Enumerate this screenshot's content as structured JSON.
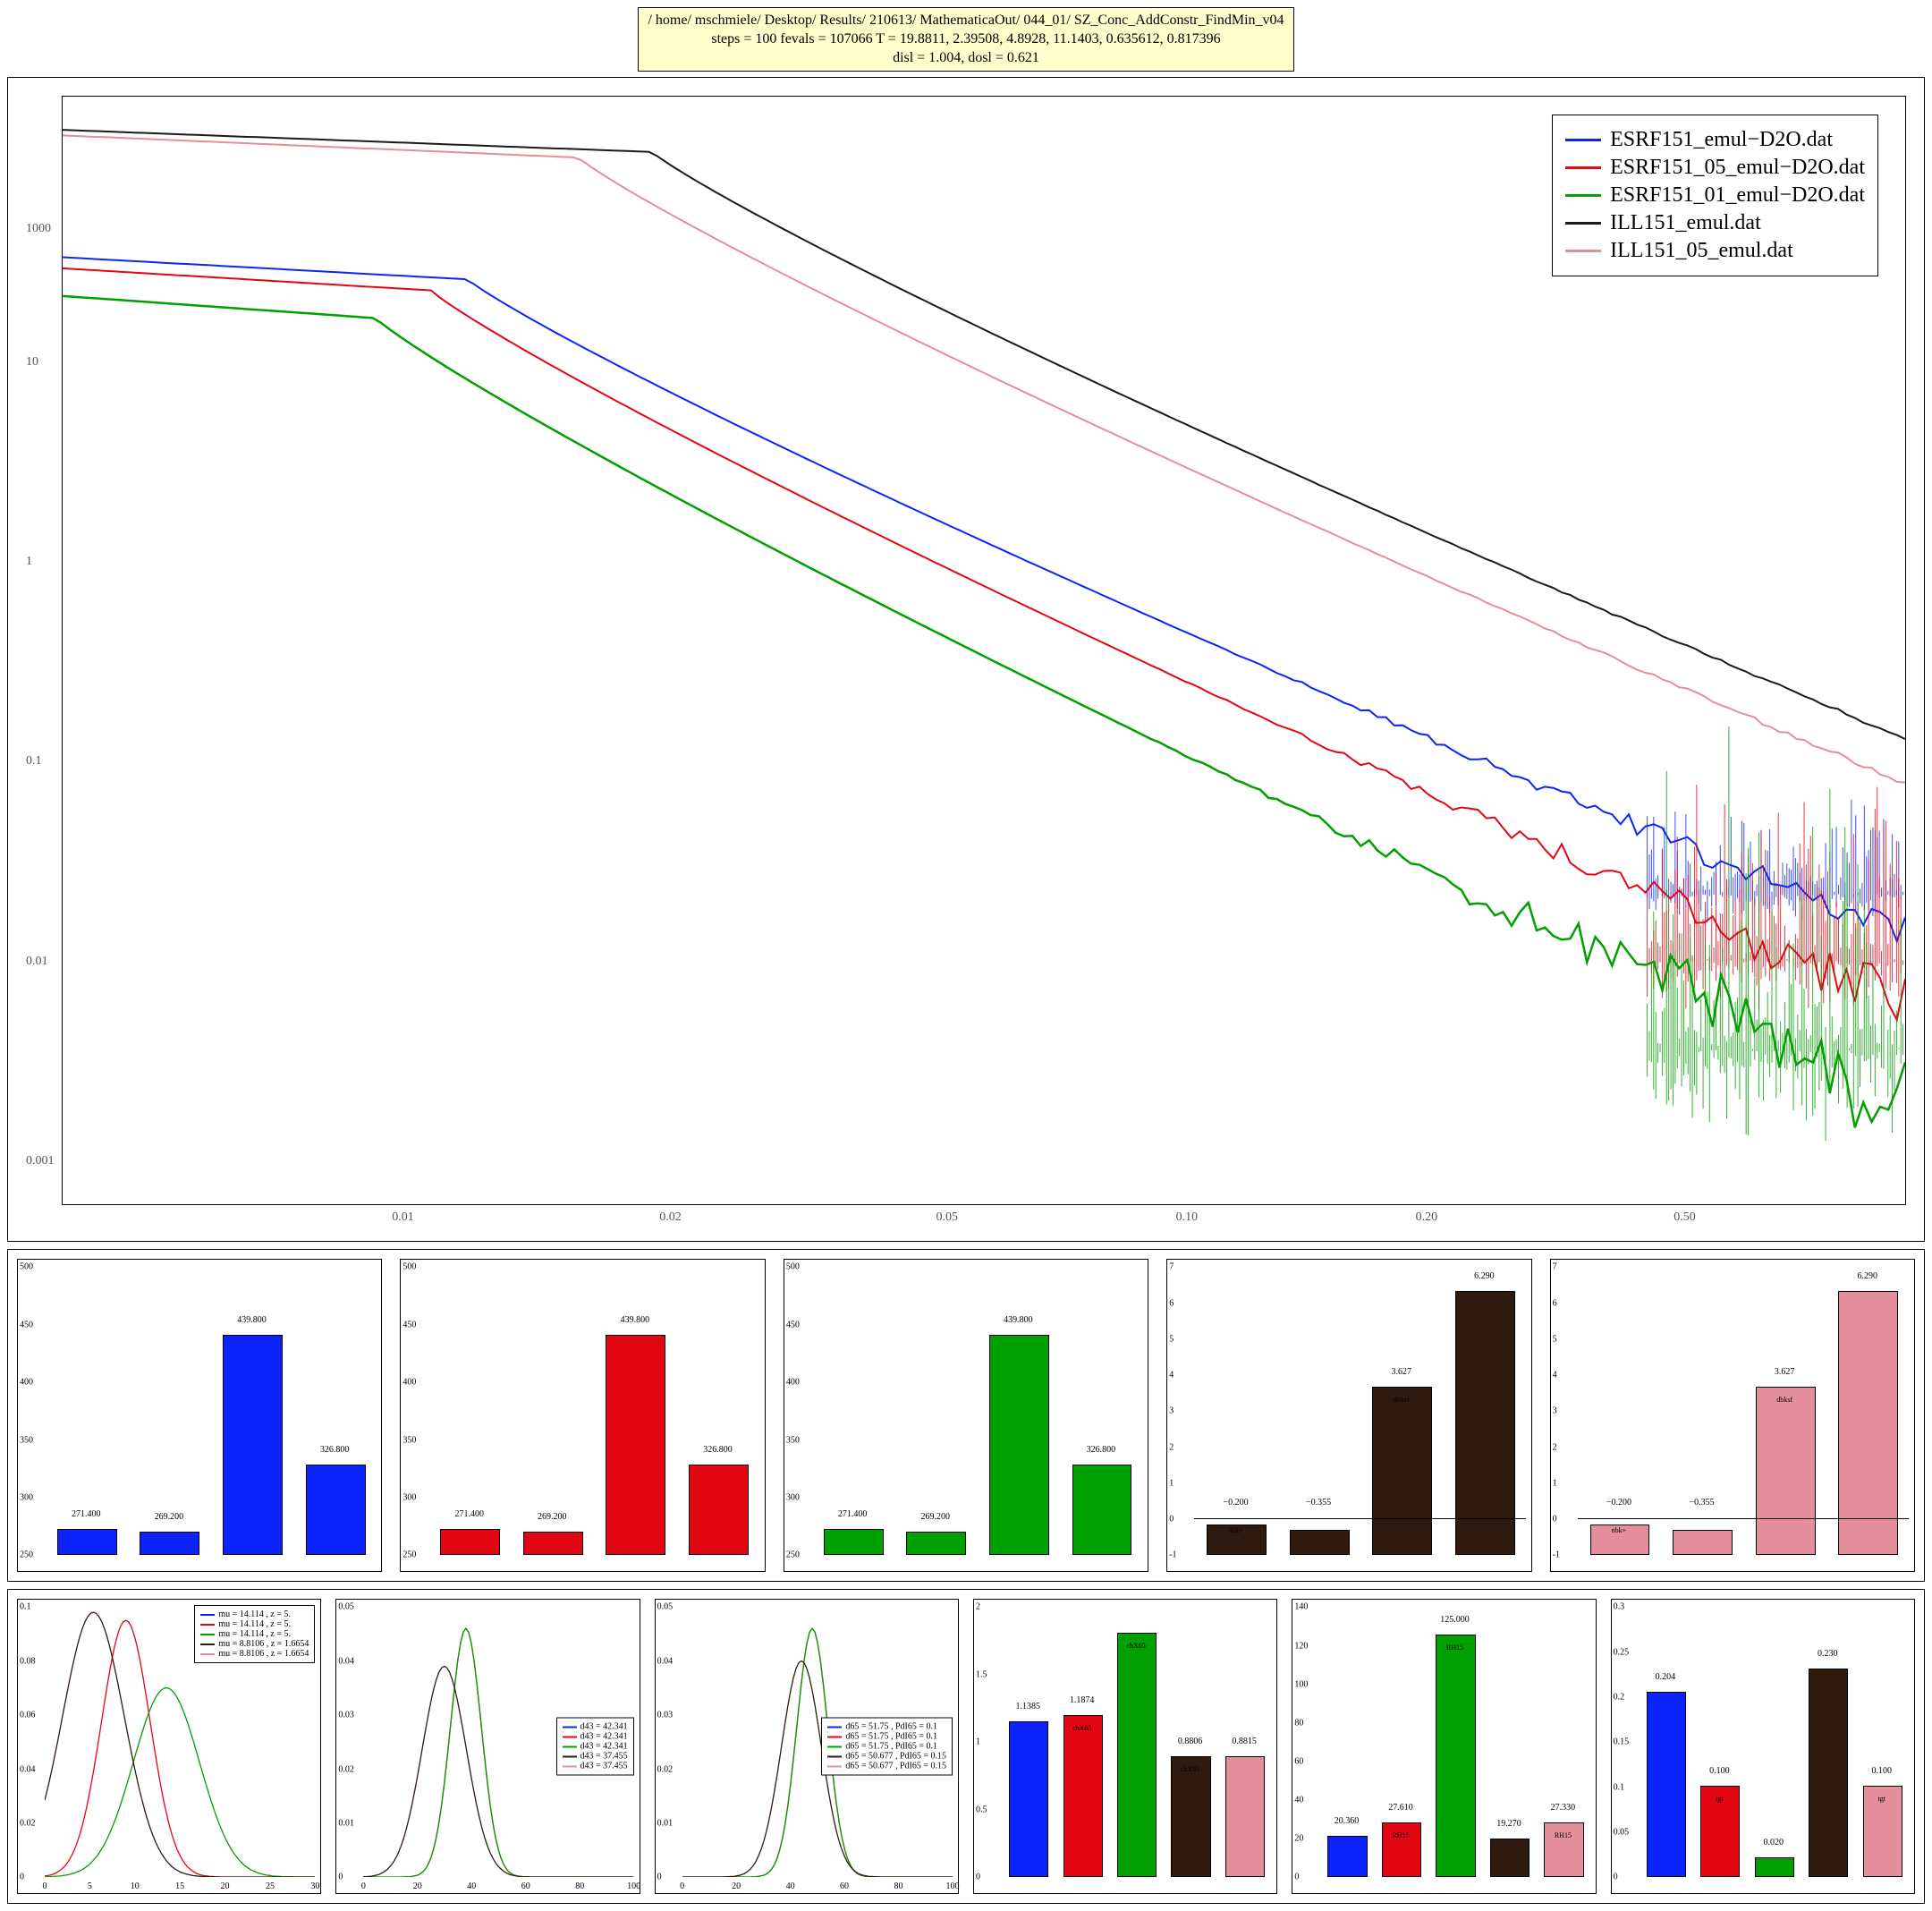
{
  "header": {
    "line1": "/ home/ mschmiele/ Desktop/ Results/ 210613/ MathematicaOut/ 044_01/ SZ_Conc_AddConstr_FindMin_v04",
    "line2": "steps = 100    fevals = 107066    T = 19.8811, 2.39508, 4.8928, 11.1403, 0.635612, 0.817396",
    "line3": "disl = 1.004, dosl = 0.621"
  },
  "colors": {
    "blue": "#0b24fb",
    "red": "#e30613",
    "green": "#00a000",
    "black": "#1a1a1a",
    "pink": "#e48f9b",
    "brown": "#2f1a10",
    "grid": "#999999"
  },
  "main": {
    "xticks": [
      {
        "pos": 0.07,
        "label": ""
      },
      {
        "pos": 0.185,
        "label": "0.01"
      },
      {
        "pos": 0.33,
        "label": "0.02"
      },
      {
        "pos": 0.48,
        "label": "0.05"
      },
      {
        "pos": 0.61,
        "label": "0.10"
      },
      {
        "pos": 0.74,
        "label": "0.20"
      },
      {
        "pos": 0.88,
        "label": "0.50"
      }
    ],
    "yticks": [
      {
        "pos": 0.04,
        "label": "0.001"
      },
      {
        "pos": 0.22,
        "label": "0.01"
      },
      {
        "pos": 0.4,
        "label": "0.1"
      },
      {
        "pos": 0.58,
        "label": "1"
      },
      {
        "pos": 0.76,
        "label": "10"
      },
      {
        "pos": 0.88,
        "label": "1000"
      }
    ],
    "legend": [
      {
        "colorKey": "blue",
        "label": "ESRF151_emul−D2O.dat"
      },
      {
        "colorKey": "red",
        "label": "ESRF151_05_emul−D2O.dat"
      },
      {
        "colorKey": "green",
        "label": "ESRF151_01_emul−D2O.dat"
      },
      {
        "colorKey": "black",
        "label": "ILL151_emul.dat"
      },
      {
        "colorKey": "pink",
        "label": "ILL151_05_emul.dat"
      }
    ],
    "curves": [
      {
        "colorKey": "black",
        "y0": 0.97,
        "ymid": 0.88,
        "y1": 0.44,
        "xbreak": 0.32,
        "noise": 0.002
      },
      {
        "colorKey": "pink",
        "y0": 0.965,
        "ymid": 0.83,
        "y1": 0.4,
        "xbreak": 0.28,
        "noise": 0.003
      },
      {
        "colorKey": "blue",
        "y0": 0.855,
        "ymid": 0.7,
        "y1": 0.26,
        "xbreak": 0.22,
        "noise": 0.02
      },
      {
        "colorKey": "red",
        "y0": 0.845,
        "ymid": 0.66,
        "y1": 0.2,
        "xbreak": 0.2,
        "noise": 0.03
      },
      {
        "colorKey": "green",
        "y0": 0.82,
        "ymid": 0.58,
        "y1": 0.12,
        "xbreak": 0.17,
        "noise": 0.06
      }
    ]
  },
  "row2": {
    "ylim": [
      250,
      500
    ],
    "yticks": [
      250,
      300,
      350,
      400,
      450,
      500
    ],
    "panels123_bars": [
      {
        "label": "271.400",
        "sub": "",
        "val": 271.4
      },
      {
        "label": "269.200",
        "sub": "",
        "val": 269.2
      },
      {
        "label": "439.800",
        "sub": "",
        "val": 439.8
      },
      {
        "label": "326.800",
        "sub": "",
        "val": 326.8
      }
    ],
    "panel1_color": "blue",
    "panel2_color": "red",
    "panel3_color": "green",
    "panels45_bars": [
      {
        "label": "−0.200",
        "sub": "nbk+",
        "val": -0.2
      },
      {
        "label": "−0.355",
        "sub": "",
        "val": -0.355
      },
      {
        "label": "3.627",
        "sub": "dbksf",
        "val": 3.627
      },
      {
        "label": "6.290",
        "sub": "",
        "val": 6.29
      }
    ],
    "panels45_ylim": [
      -1,
      7
    ],
    "panel4_color": "brown",
    "panel5_color": "pink"
  },
  "row3": {
    "line_panels": [
      {
        "legend_pos": "tr",
        "xmax": 30,
        "xticks": [
          0,
          5,
          10,
          15,
          20,
          25,
          30
        ],
        "ymax": 0.1,
        "yticks": [
          0,
          0.02,
          0.04,
          0.06,
          0.08,
          0.1
        ],
        "legend": [
          {
            "colorKey": "blue",
            "text": "mu = 14.114 , z = 5."
          },
          {
            "colorKey": "red",
            "text": "mu = 14.114 , z = 5."
          },
          {
            "colorKey": "green",
            "text": "mu = 14.114 , z = 5."
          },
          {
            "colorKey": "brown",
            "text": "mu = 8.8106 , z = 1.6654"
          },
          {
            "colorKey": "pink",
            "text": "mu = 8.8106 , z = 1.6654"
          }
        ],
        "curves": [
          {
            "colorKey": "red",
            "peak_x": 0.3,
            "spread": 0.22,
            "amp": 0.95
          },
          {
            "colorKey": "green",
            "peak_x": 0.45,
            "spread": 0.3,
            "amp": 0.7
          },
          {
            "colorKey": "brown",
            "peak_x": 0.18,
            "spread": 0.28,
            "amp": 0.98
          }
        ]
      },
      {
        "legend_pos": "r",
        "xmax": 100,
        "xticks": [
          0,
          20,
          40,
          60,
          80,
          100
        ],
        "ymax": 0.05,
        "yticks": [
          0,
          0.01,
          0.02,
          0.03,
          0.04,
          0.05
        ],
        "legend": [
          {
            "colorKey": "blue",
            "text": "d43 = 42.341"
          },
          {
            "colorKey": "red",
            "text": "d43 = 42.341"
          },
          {
            "colorKey": "green",
            "text": "d43 = 42.341"
          },
          {
            "colorKey": "brown",
            "text": "d43 = 37.455"
          },
          {
            "colorKey": "pink",
            "text": "d43 = 37.455"
          }
        ],
        "curves": [
          {
            "colorKey": "red",
            "peak_x": 0.38,
            "spread": 0.14,
            "amp": 0.92
          },
          {
            "colorKey": "green",
            "peak_x": 0.38,
            "spread": 0.14,
            "amp": 0.92
          },
          {
            "colorKey": "brown",
            "peak_x": 0.3,
            "spread": 0.2,
            "amp": 0.78
          }
        ]
      },
      {
        "legend_pos": "r",
        "xmax": 100,
        "xticks": [
          0,
          20,
          40,
          60,
          80,
          100
        ],
        "ymax": 0.05,
        "yticks": [
          0,
          0.01,
          0.02,
          0.03,
          0.04,
          0.05
        ],
        "legend": [
          {
            "colorKey": "blue",
            "text": "d65 = 51.75 , PdI65 = 0.1"
          },
          {
            "colorKey": "red",
            "text": "d65 = 51.75 , PdI65 = 0.1"
          },
          {
            "colorKey": "green",
            "text": "d65 = 51.75 , PdI65 = 0.1"
          },
          {
            "colorKey": "brown",
            "text": "d65 = 50.677 , PdI65 = 0.15"
          },
          {
            "colorKey": "pink",
            "text": "d65 = 50.677 , PdI65 = 0.15"
          }
        ],
        "curves": [
          {
            "colorKey": "red",
            "peak_x": 0.48,
            "spread": 0.14,
            "amp": 0.92
          },
          {
            "colorKey": "green",
            "peak_x": 0.48,
            "spread": 0.14,
            "amp": 0.92
          },
          {
            "colorKey": "brown",
            "peak_x": 0.44,
            "spread": 0.18,
            "amp": 0.8
          }
        ]
      }
    ],
    "bar_panels": [
      {
        "ymax": 2.0,
        "yticks": [
          0,
          0.5,
          1.0,
          1.5,
          2.0
        ],
        "bars": [
          {
            "colorKey": "blue",
            "val": 1.1385,
            "label": "1.1385",
            "sub": ""
          },
          {
            "colorKey": "red",
            "val": 1.1874,
            "label": "1.1874",
            "sub": "chX65"
          },
          {
            "colorKey": "green",
            "val": 1.8,
            "label": "",
            "sub": "chX65"
          },
          {
            "colorKey": "brown",
            "val": 0.8806,
            "label": "0.8806",
            "sub": "chX65"
          },
          {
            "colorKey": "pink",
            "val": 0.8815,
            "label": "0.8815",
            "sub": ""
          }
        ]
      },
      {
        "ymax": 140,
        "yticks": [
          0,
          20,
          40,
          60,
          80,
          100,
          120,
          140
        ],
        "bars": [
          {
            "colorKey": "blue",
            "val": 20.36,
            "label": "20.360",
            "sub": ""
          },
          {
            "colorKey": "red",
            "val": 27.61,
            "label": "27.610",
            "sub": "RH15"
          },
          {
            "colorKey": "green",
            "val": 125.0,
            "label": "125.000",
            "sub": "RH15"
          },
          {
            "colorKey": "brown",
            "val": 19.27,
            "label": "19.270",
            "sub": ""
          },
          {
            "colorKey": "pink",
            "val": 27.33,
            "label": "27.330",
            "sub": "RH15"
          }
        ]
      },
      {
        "ymax": 0.3,
        "yticks": [
          0,
          0.05,
          0.1,
          0.15,
          0.2,
          0.25,
          0.3
        ],
        "bars": [
          {
            "colorKey": "blue",
            "val": 0.204,
            "label": "0.204",
            "sub": ""
          },
          {
            "colorKey": "red",
            "val": 0.1,
            "label": "0.100",
            "sub": "tgt"
          },
          {
            "colorKey": "green",
            "val": 0.02,
            "label": "0.020",
            "sub": ""
          },
          {
            "colorKey": "brown",
            "val": 0.23,
            "label": "0.230",
            "sub": ""
          },
          {
            "colorKey": "pink",
            "val": 0.1,
            "label": "0.100",
            "sub": "tgt"
          }
        ]
      }
    ]
  }
}
